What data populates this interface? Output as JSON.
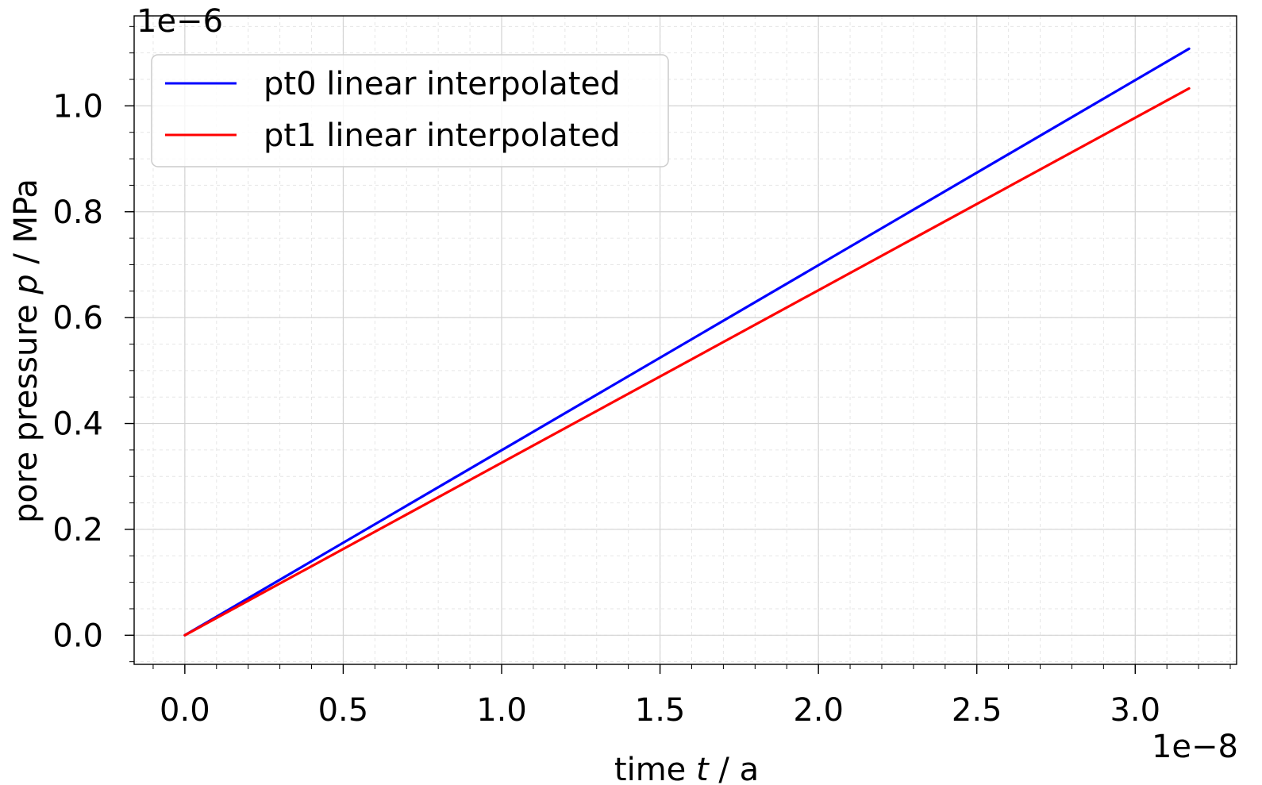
{
  "chart_data": {
    "type": "line",
    "title": "",
    "xlabel_parts": [
      "time ",
      "t",
      " / a"
    ],
    "ylabel_parts": [
      "pore pressure ",
      "p",
      " / MPa"
    ],
    "x_offset_label": "1e−8",
    "y_offset_label": "1e−6",
    "xlim": [
      -0.16,
      3.32
    ],
    "ylim": [
      -0.055,
      1.17
    ],
    "x_ticks": [
      0.0,
      0.5,
      1.0,
      1.5,
      2.0,
      2.5,
      3.0
    ],
    "x_tick_labels": [
      "0.0",
      "0.5",
      "1.0",
      "1.5",
      "2.0",
      "2.5",
      "3.0"
    ],
    "y_ticks": [
      0.0,
      0.2,
      0.4,
      0.6,
      0.8,
      1.0
    ],
    "y_tick_labels": [
      "0.0",
      "0.2",
      "0.4",
      "0.6",
      "0.8",
      "1.0"
    ],
    "x_minor_step": 0.1,
    "y_minor_step": 0.05,
    "grid": true,
    "legend_position": "top-left",
    "series": [
      {
        "name": "pt0 linear interpolated",
        "color": "#0000ff",
        "x": [
          0.0,
          3.17
        ],
        "y": [
          0.0,
          1.108
        ]
      },
      {
        "name": "pt1 linear interpolated",
        "color": "#ff0000",
        "x": [
          0.0,
          3.17
        ],
        "y": [
          0.0,
          1.033
        ]
      }
    ]
  }
}
